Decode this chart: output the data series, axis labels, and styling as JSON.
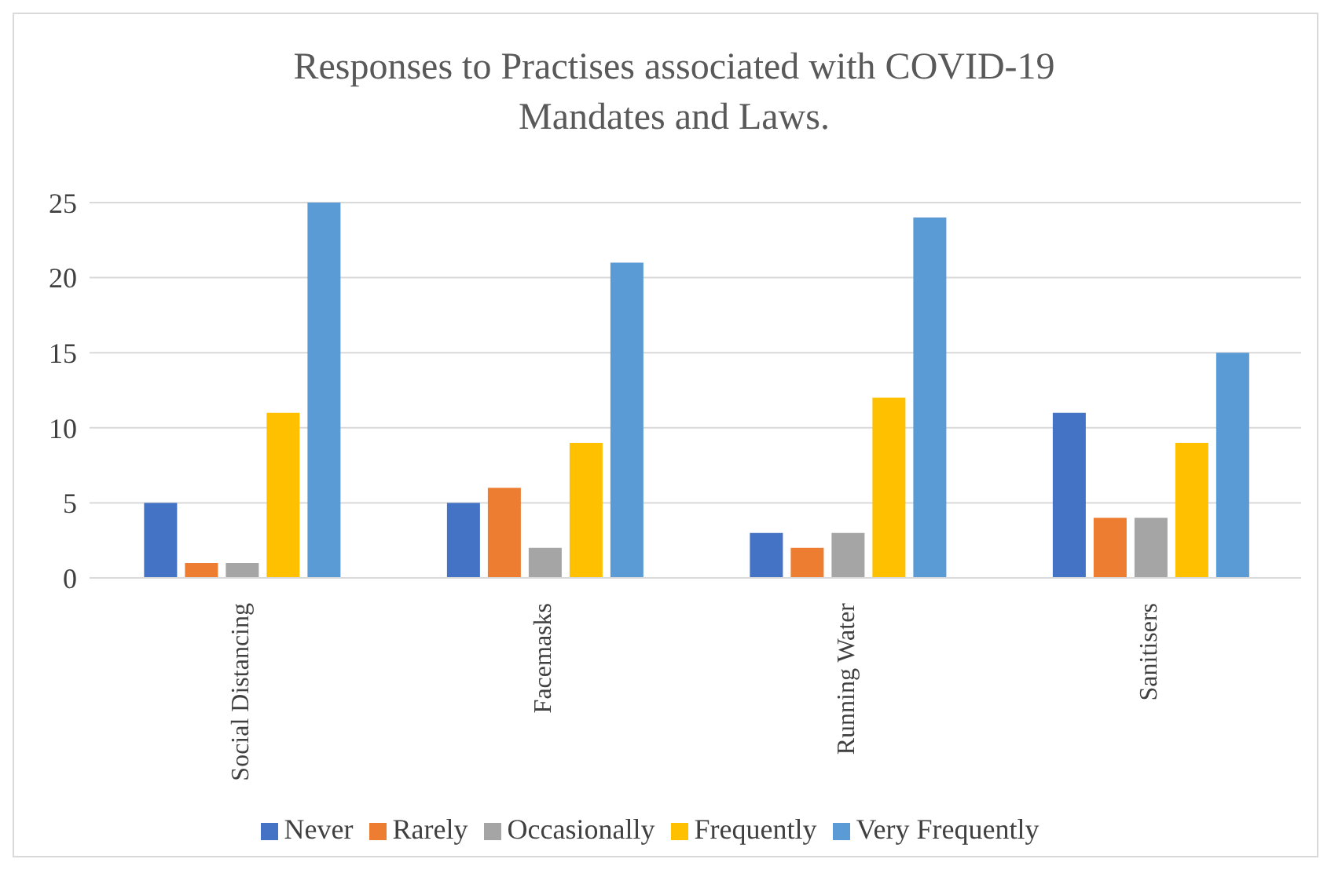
{
  "chart_data": {
    "type": "bar",
    "title": "Responses to Practises associated with COVID-19 Mandates and Laws.",
    "categories": [
      "Social Distancing",
      "Facemasks",
      "Running Water",
      "Sanitisers"
    ],
    "series": [
      {
        "name": "Never",
        "color": "#4472c4",
        "values": [
          5,
          5,
          3,
          11
        ]
      },
      {
        "name": "Rarely",
        "color": "#ed7d31",
        "values": [
          1,
          6,
          2,
          4
        ]
      },
      {
        "name": "Occasionally",
        "color": "#a5a5a5",
        "values": [
          1,
          2,
          3,
          4
        ]
      },
      {
        "name": "Frequently",
        "color": "#ffc000",
        "values": [
          11,
          9,
          12,
          9
        ]
      },
      {
        "name": "Very Frequently",
        "color": "#5b9bd5",
        "values": [
          25,
          21,
          24,
          15
        ]
      }
    ],
    "ylim": [
      0,
      25
    ],
    "yticks": [
      0,
      5,
      10,
      15,
      20,
      25
    ],
    "grid": "y",
    "legend": "bottom"
  }
}
